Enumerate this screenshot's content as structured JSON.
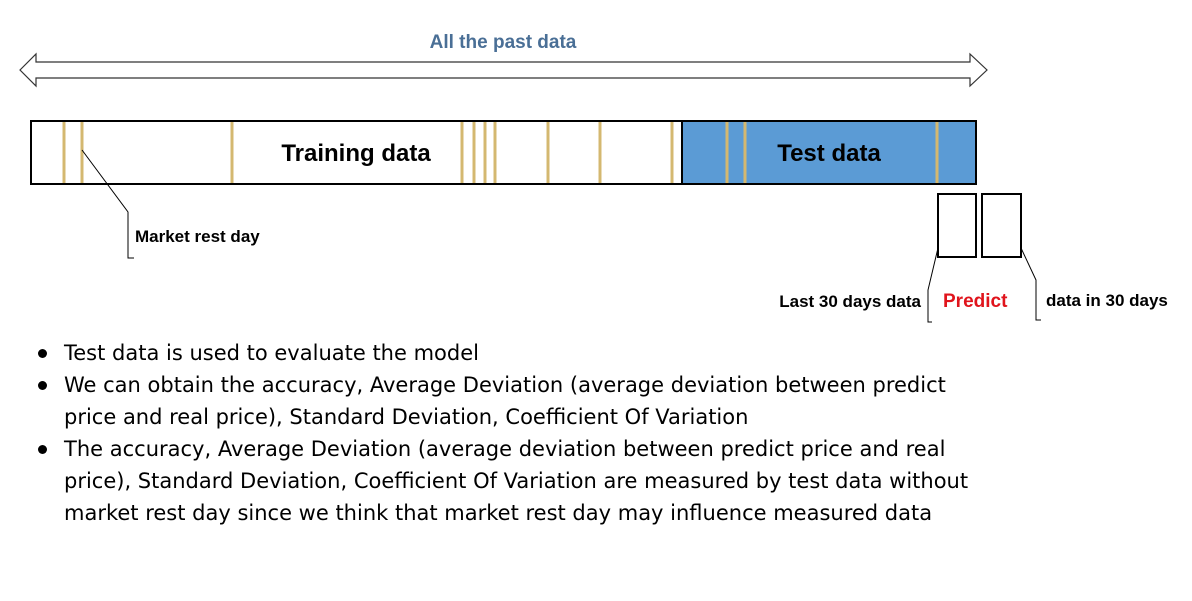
{
  "diagram": {
    "top_label": "All the past data",
    "training_label": "Training data",
    "test_label": "Test data",
    "market_rest_label": "Market rest day",
    "last_30_label": "Last 30 days data",
    "predict_label": "Predict",
    "next_30_label": "data in 30 days"
  },
  "bullets": [
    "Test data is used to evaluate the model",
    "We can obtain the accuracy, Average Deviation (average deviation between predict price and real price), Standard Deviation, Coefficient Of Variation",
    "The accuracy, Average Deviation (average deviation between predict price and real price), Standard Deviation, Coefficient Of Variation are measured by test data without market rest day since we think that market rest day may influence measured data"
  ],
  "colors": {
    "top_label": "#4a6f96",
    "test_fill": "#5b9bd5",
    "rest_day_line": "#d4b870",
    "predict": "#e0141c",
    "outline": "#000000"
  }
}
